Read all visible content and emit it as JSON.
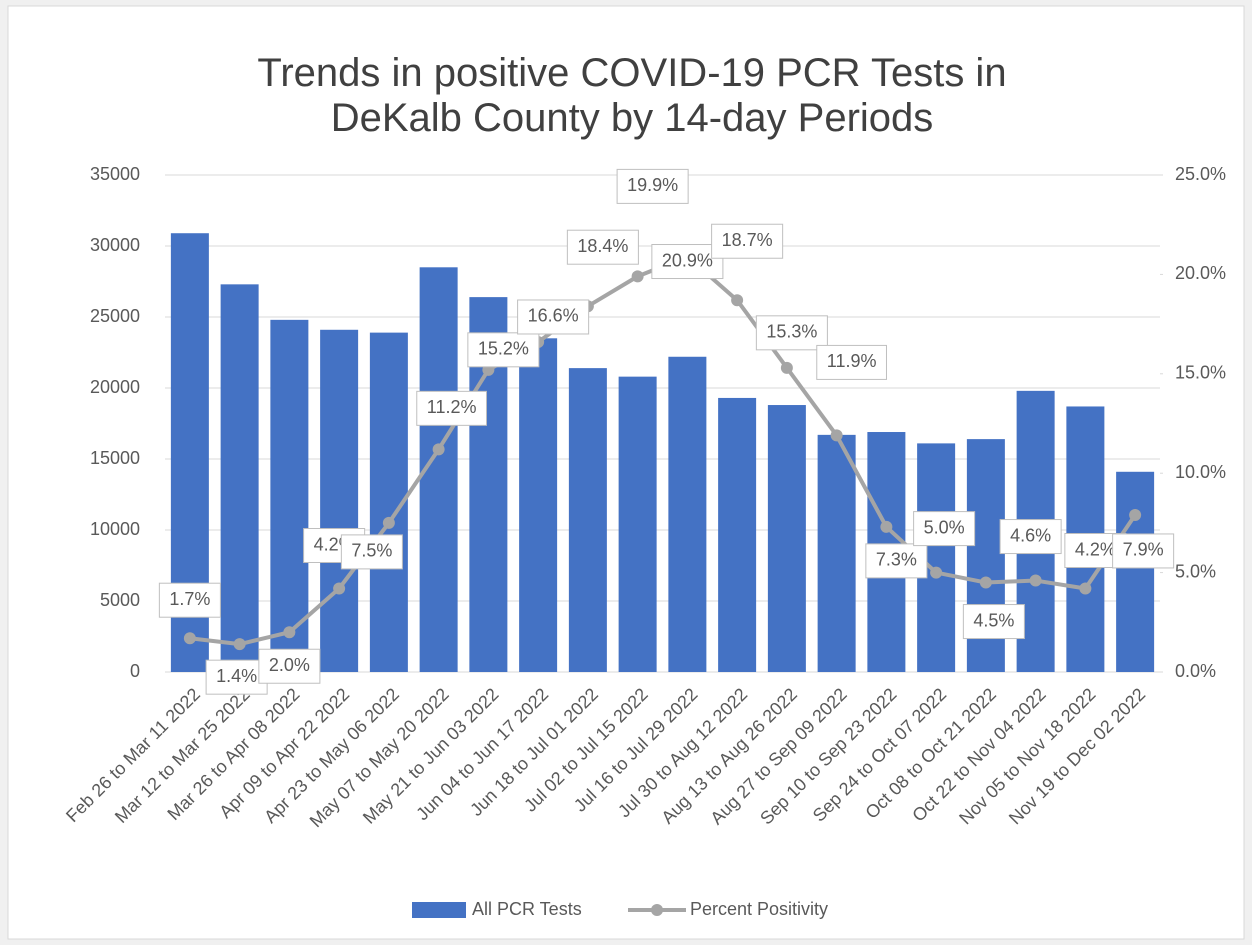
{
  "chart_data": {
    "type": "bar",
    "title": "Trends in positive COVID-19 PCR Tests in DeKalb County by 14-day Periods",
    "categories": [
      "Feb 26 to Mar 11 2022",
      "Mar 12 to Mar 25 2022",
      "Mar 26 to Apr 08 2022",
      "Apr 09 to Apr 22 2022",
      "Apr 23 to May 06 2022",
      "May 07 to May 20 2022",
      "May 21 to Jun 03 2022",
      "Jun 04 to Jun 17 2022",
      "Jun 18 to Jul 01 2022",
      "Jul 02 to Jul 15 2022",
      "Jul 16 to Jul 29 2022",
      "Jul 30 to Aug 12 2022",
      "Aug 13 to Aug 26 2022",
      "Aug 27 to Sep 09 2022",
      "Sep 10 to Sep 23 2022",
      "Sep 24 to Oct 07 2022",
      "Oct 08 to Oct 21 2022",
      "Oct 22 to Nov 04 2022",
      "Nov 05 to Nov 18 2022",
      "Nov 19 to Dec 02 2022"
    ],
    "series": [
      {
        "name": "All PCR Tests",
        "color": "#4472c4",
        "type": "bar",
        "values": [
          30900,
          27300,
          24800,
          24100,
          23900,
          28500,
          26400,
          23500,
          21400,
          20800,
          22200,
          19300,
          18800,
          16700,
          16900,
          16100,
          16400,
          19800,
          18700,
          14100
        ]
      },
      {
        "name": "Percent Positivity",
        "color": "#a5a5a5",
        "type": "line",
        "axis": "y2",
        "values": [
          1.7,
          1.4,
          2.0,
          4.2,
          7.5,
          11.2,
          15.2,
          16.6,
          18.4,
          19.9,
          20.9,
          18.7,
          15.3,
          11.9,
          7.3,
          5.0,
          4.5,
          4.6,
          4.2,
          7.9
        ],
        "value_labels": [
          "1.7%",
          "1.4%",
          "2.0%",
          "4.2%",
          "7.5%",
          "11.2%",
          "15.2%",
          "16.6%",
          "18.4%",
          "19.9%",
          "20.9%",
          "18.7%",
          "15.3%",
          "11.9%",
          "7.3%",
          "5.0%",
          "4.5%",
          "4.6%",
          "4.2%",
          "7.9%"
        ]
      }
    ],
    "ylim": [
      0,
      35000
    ],
    "yticks": [
      0,
      5000,
      10000,
      15000,
      20000,
      25000,
      30000,
      35000
    ],
    "y2lim": [
      0,
      25
    ],
    "y2ticks": [
      {
        "value": 0,
        "label": "0.0%"
      },
      {
        "value": 5,
        "label": "5.0%"
      },
      {
        "value": 10,
        "label": "10.0%"
      },
      {
        "value": 15,
        "label": "15.0%"
      },
      {
        "value": 20,
        "label": "20.0%"
      },
      {
        "value": 25,
        "label": "25.0%"
      }
    ],
    "grid": true,
    "legend": "bottom"
  }
}
